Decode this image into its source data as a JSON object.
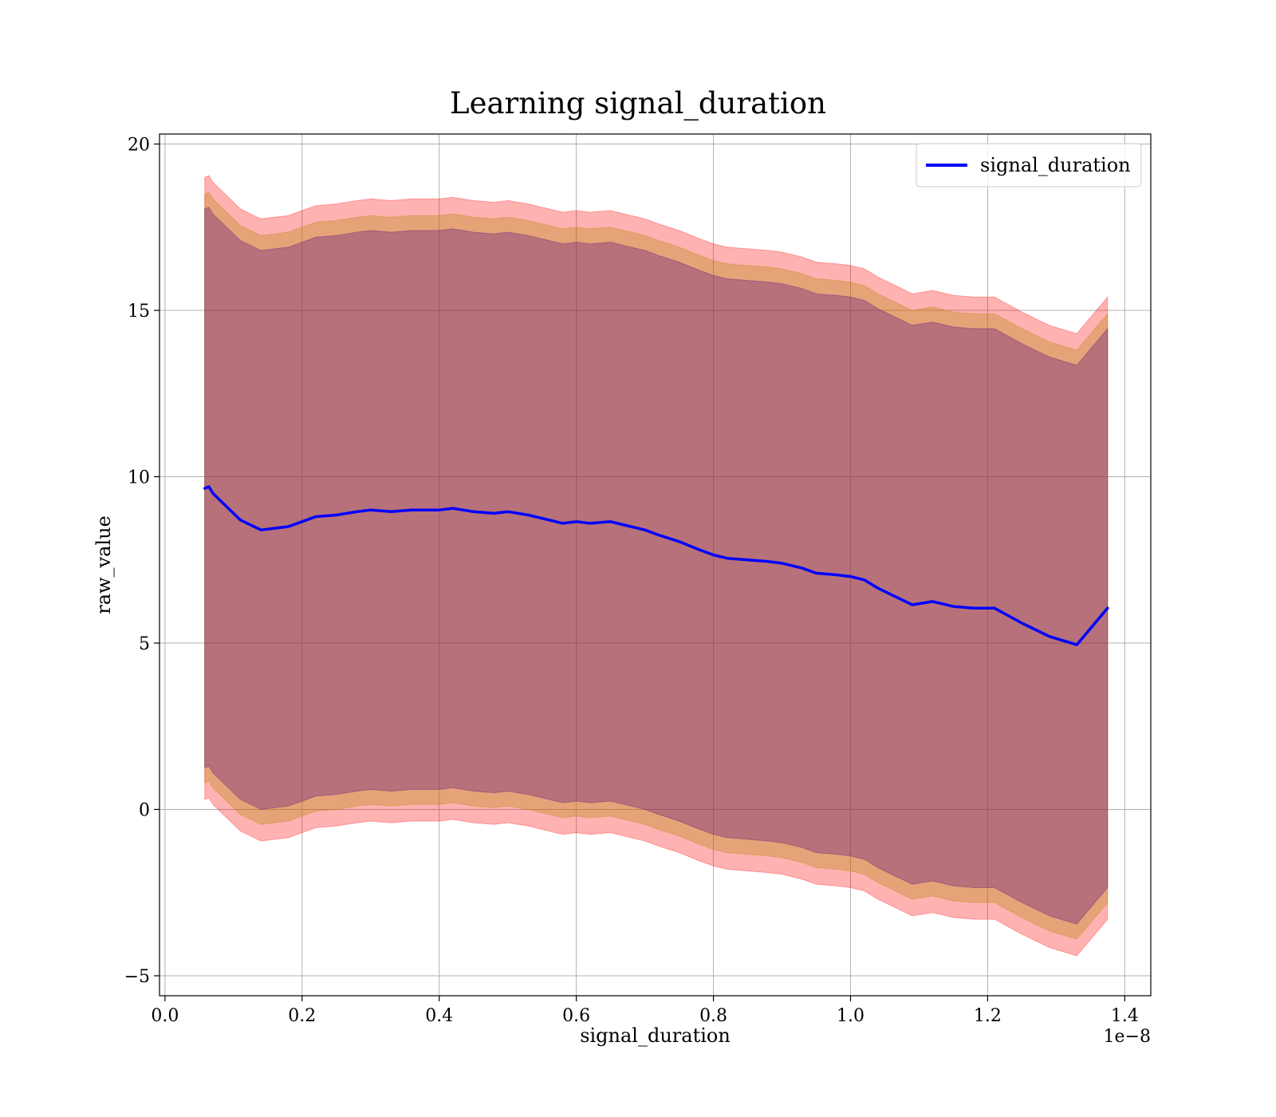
{
  "chart_data": {
    "type": "line",
    "title": "Learning signal_duration",
    "xlabel": "signal_duration",
    "ylabel": "raw_value",
    "x_offset_label": "1e−8",
    "xlim": [
      -0.008,
      1.438
    ],
    "ylim": [
      -5.6,
      20.3
    ],
    "xticks": [
      {
        "value": 0.0,
        "label": "0.0"
      },
      {
        "value": 0.2,
        "label": "0.2"
      },
      {
        "value": 0.4,
        "label": "0.4"
      },
      {
        "value": 0.6,
        "label": "0.6"
      },
      {
        "value": 0.8,
        "label": "0.8"
      },
      {
        "value": 1.0,
        "label": "1.0"
      },
      {
        "value": 1.2,
        "label": "1.2"
      },
      {
        "value": 1.4,
        "label": "1.4"
      }
    ],
    "yticks": [
      {
        "value": -5,
        "label": "−5"
      },
      {
        "value": 0,
        "label": "0"
      },
      {
        "value": 5,
        "label": "5"
      },
      {
        "value": 10,
        "label": "10"
      },
      {
        "value": 15,
        "label": "15"
      },
      {
        "value": 20,
        "label": "20"
      }
    ],
    "grid": true,
    "legend_position": "top-right",
    "series": [
      {
        "name": "signal_duration",
        "color": "#0000ff",
        "x": [
          0.058,
          0.064,
          0.07,
          0.08,
          0.09,
          0.1,
          0.11,
          0.12,
          0.13,
          0.14,
          0.16,
          0.18,
          0.2,
          0.22,
          0.25,
          0.28,
          0.3,
          0.33,
          0.36,
          0.4,
          0.42,
          0.45,
          0.48,
          0.5,
          0.53,
          0.56,
          0.58,
          0.6,
          0.62,
          0.65,
          0.67,
          0.7,
          0.72,
          0.75,
          0.78,
          0.8,
          0.82,
          0.85,
          0.88,
          0.9,
          0.93,
          0.95,
          0.98,
          1.0,
          1.02,
          1.04,
          1.07,
          1.09,
          1.12,
          1.15,
          1.18,
          1.21,
          1.25,
          1.29,
          1.33,
          1.375
        ],
        "values": [
          9.65,
          9.7,
          9.5,
          9.3,
          9.1,
          8.9,
          8.7,
          8.6,
          8.5,
          8.4,
          8.45,
          8.5,
          8.65,
          8.8,
          8.85,
          8.95,
          9.0,
          8.95,
          9.0,
          9.0,
          9.05,
          8.95,
          8.9,
          8.95,
          8.85,
          8.7,
          8.6,
          8.65,
          8.6,
          8.65,
          8.55,
          8.4,
          8.25,
          8.05,
          7.8,
          7.65,
          7.55,
          7.5,
          7.45,
          7.4,
          7.25,
          7.1,
          7.05,
          7.0,
          6.9,
          6.65,
          6.35,
          6.15,
          6.25,
          6.1,
          6.05,
          6.05,
          5.6,
          5.2,
          4.95,
          6.05
        ],
        "bands": [
          {
            "color": "#ff0000",
            "opacity": 0.3,
            "lower_offset": -9.35,
            "upper_offset": 9.35
          },
          {
            "color": "#b8860b",
            "opacity": 0.35,
            "lower_offset": -8.85,
            "upper_offset": 8.85
          },
          {
            "color": "#4b0082",
            "opacity": 0.3,
            "lower_offset": -8.4,
            "upper_offset": 8.4
          }
        ]
      }
    ]
  }
}
